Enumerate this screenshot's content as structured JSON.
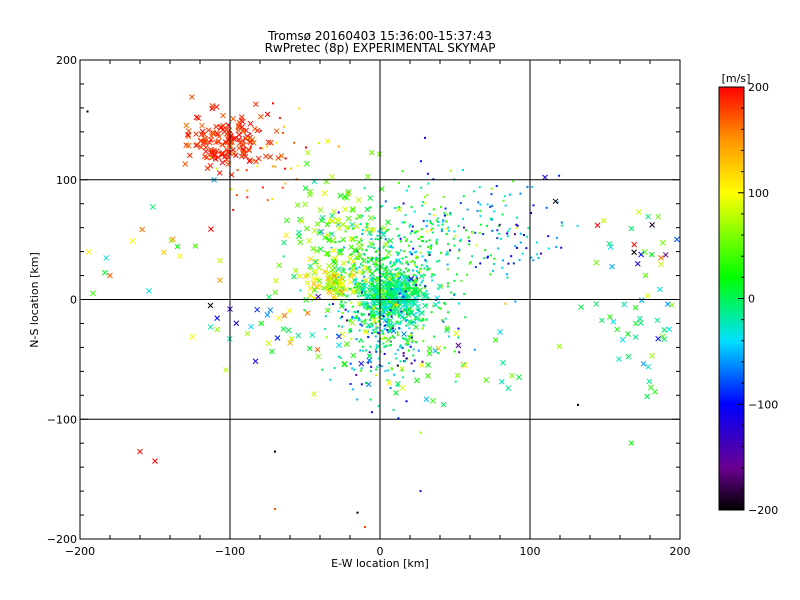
{
  "chart_data": {
    "type": "scatter",
    "title": "Tromsø 20160403 15:36:00-15:37:43",
    "subtitle": "RwPretec (8p) EXPERIMENTAL SKYMAP",
    "xlabel": "E-W location [km]",
    "ylabel": "N-S location [km]",
    "xlim": [
      -200,
      200
    ],
    "ylim": [
      -200,
      200
    ],
    "x_ticks": [
      -200,
      -100,
      0,
      100,
      200
    ],
    "y_ticks": [
      -200,
      -100,
      0,
      100,
      200
    ],
    "grid": true,
    "colorbar": {
      "label": "[m/s]",
      "min": -200,
      "max": 200,
      "ticks": [
        200,
        100,
        0,
        -100,
        -200
      ],
      "colormap": "rainbow (black -> purple -> blue -> cyan -> green -> yellow -> red)"
    },
    "marker_types": [
      "dot",
      "x"
    ],
    "clusters": [
      {
        "cx": -100,
        "cy": 133,
        "sx": 14,
        "sy": 12,
        "n": 160,
        "v": 185,
        "vs": 12,
        "marker": "x"
      },
      {
        "cx": -75,
        "cy": 120,
        "sx": 20,
        "sy": 18,
        "n": 40,
        "v": 150,
        "vs": 30,
        "marker": "dot"
      },
      {
        "cx": 5,
        "cy": 10,
        "sx": 20,
        "sy": 26,
        "n": 650,
        "v": 0,
        "vs": 35,
        "marker": "dot"
      },
      {
        "cx": 8,
        "cy": 3,
        "sx": 10,
        "sy": 10,
        "n": 220,
        "v": -10,
        "vs": 18,
        "marker": "x"
      },
      {
        "cx": 40,
        "cy": 55,
        "sx": 28,
        "sy": 28,
        "n": 150,
        "v": -10,
        "vs": 50,
        "marker": "dot"
      },
      {
        "cx": 85,
        "cy": 55,
        "sx": 18,
        "sy": 22,
        "n": 70,
        "v": -80,
        "vs": 35,
        "marker": "dot"
      },
      {
        "cx": 5,
        "cy": -30,
        "sx": 18,
        "sy": 25,
        "n": 180,
        "v": -50,
        "vs": 60,
        "marker": "dot"
      },
      {
        "cx": -30,
        "cy": 15,
        "sx": 12,
        "sy": 10,
        "n": 90,
        "v": 90,
        "vs": 30,
        "marker": "x"
      },
      {
        "cx": -25,
        "cy": 55,
        "sx": 20,
        "sy": 30,
        "n": 120,
        "v": 50,
        "vs": 40,
        "marker": "x"
      },
      {
        "cx": 175,
        "cy": -25,
        "sx": 15,
        "sy": 30,
        "n": 40,
        "v": -10,
        "vs": 60,
        "marker": "x"
      },
      {
        "cx": 175,
        "cy": 50,
        "sx": 15,
        "sy": 15,
        "n": 20,
        "v": 20,
        "vs": 150,
        "marker": "x"
      },
      {
        "cx": -60,
        "cy": -20,
        "sx": 30,
        "sy": 20,
        "n": 40,
        "v": 30,
        "vs": 80,
        "marker": "x"
      },
      {
        "cx": 30,
        "cy": -55,
        "sx": 30,
        "sy": 20,
        "n": 50,
        "v": 20,
        "vs": 60,
        "marker": "x"
      },
      {
        "cx": -150,
        "cy": 40,
        "sx": 25,
        "sy": 25,
        "n": 20,
        "v": 60,
        "vs": 80,
        "marker": "x"
      }
    ],
    "singles": [
      {
        "x": -160,
        "y": -127,
        "v": 200,
        "marker": "x"
      },
      {
        "x": -150,
        "y": -135,
        "v": 200,
        "marker": "x"
      },
      {
        "x": -195,
        "y": 157,
        "v": -200,
        "marker": "dot"
      },
      {
        "x": -70,
        "y": -127,
        "v": -200,
        "marker": "dot"
      },
      {
        "x": -70,
        "y": -175,
        "v": 170,
        "marker": "dot"
      },
      {
        "x": -15,
        "y": -178,
        "v": -200,
        "marker": "dot"
      },
      {
        "x": -10,
        "y": -190,
        "v": 180,
        "marker": "dot"
      },
      {
        "x": 27,
        "y": -160,
        "v": -130,
        "marker": "dot"
      },
      {
        "x": 132,
        "y": -88,
        "v": -200,
        "marker": "dot"
      },
      {
        "x": 110,
        "y": 102,
        "v": -120,
        "marker": "x"
      },
      {
        "x": 117,
        "y": 82,
        "v": -200,
        "marker": "x"
      },
      {
        "x": 145,
        "y": 62,
        "v": 200,
        "marker": "x"
      },
      {
        "x": 30,
        "y": 135,
        "v": -110,
        "marker": "dot"
      },
      {
        "x": -113,
        "y": -5,
        "v": -200,
        "marker": "x"
      },
      {
        "x": -113,
        "y": -23,
        "v": -20,
        "marker": "x"
      },
      {
        "x": -100,
        "y": -8,
        "v": -130,
        "marker": "x"
      }
    ]
  }
}
